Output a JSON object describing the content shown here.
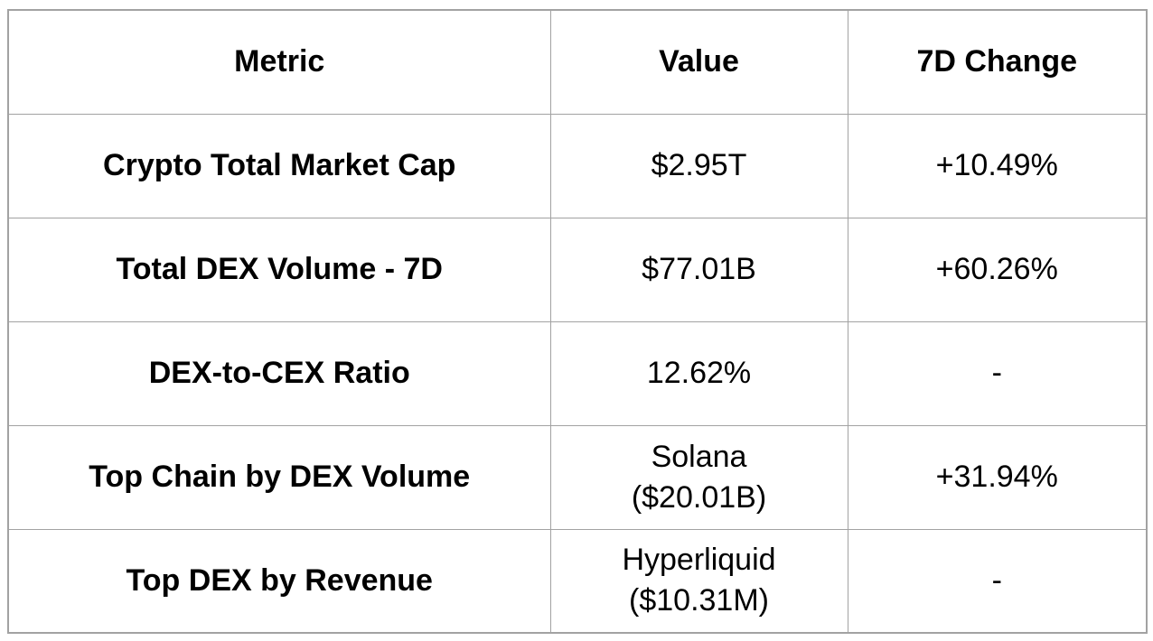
{
  "table": {
    "columns": [
      "Metric",
      "Value",
      "7D Change"
    ],
    "rows": [
      {
        "metric": "Crypto Total Market Cap",
        "value": "$2.95T",
        "change": "+10.49%"
      },
      {
        "metric": "Total DEX Volume - 7D",
        "value": "$77.01B",
        "change": "+60.26%"
      },
      {
        "metric": "DEX-to-CEX Ratio",
        "value": "12.62%",
        "change": "-"
      },
      {
        "metric": "Top Chain by DEX Volume",
        "value": "Solana\n($20.01B)",
        "change": "+31.94%"
      },
      {
        "metric": "Top DEX by Revenue",
        "value": "Hyperliquid\n($10.31M)",
        "change": "-"
      }
    ],
    "colors": {
      "border": "#a2a2a2",
      "text": "#000000",
      "background": "#ffffff"
    }
  },
  "chart_data": {
    "type": "table",
    "title": "",
    "columns": [
      "Metric",
      "Value",
      "7D Change"
    ],
    "rows": [
      [
        "Crypto Total Market Cap",
        "$2.95T",
        "+10.49%"
      ],
      [
        "Total DEX Volume - 7D",
        "$77.01B",
        "+60.26%"
      ],
      [
        "DEX-to-CEX Ratio",
        "12.62%",
        "-"
      ],
      [
        "Top Chain by DEX Volume",
        "Solana ($20.01B)",
        "+31.94%"
      ],
      [
        "Top DEX by Revenue",
        "Hyperliquid ($10.31M)",
        "-"
      ]
    ]
  }
}
